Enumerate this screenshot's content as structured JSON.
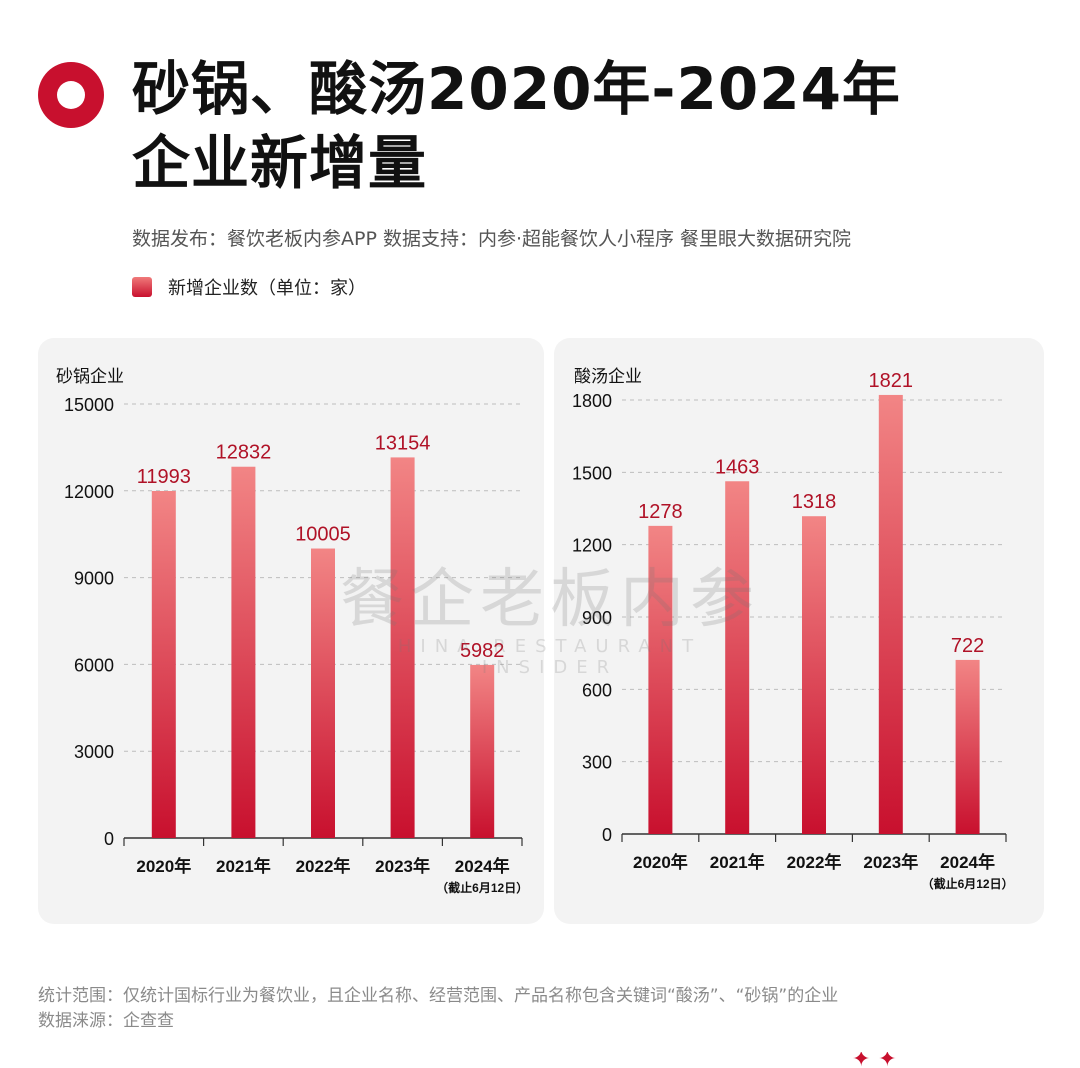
{
  "title": {
    "line1": "砂锅、酸汤2020年-2024年",
    "line2": "企业新增量"
  },
  "source_text": "数据发布：餐饮老板内参APP  数据支持：内参·超能餐饮人小程序   餐里眼大数据研究院",
  "legend": {
    "label": "新增企业数（单位：家）"
  },
  "colors": {
    "accent": "#c8102e",
    "bar_top": "#f28585",
    "bar_bottom": "#c8102e",
    "value_label": "#b01227"
  },
  "chart_data": [
    {
      "type": "bar",
      "title": "砂锅企业",
      "categories": [
        "2020年",
        "2021年",
        "2022年",
        "2023年",
        "2024年"
      ],
      "category_notes": [
        "",
        "",
        "",
        "",
        "（截止6月12日）"
      ],
      "values": [
        11993,
        12832,
        10005,
        13154,
        5982
      ],
      "value_labels": [
        "11993",
        "12832",
        "10005",
        "13154",
        "5982"
      ],
      "ylim": [
        0,
        15000
      ],
      "yticks": [
        0,
        3000,
        6000,
        9000,
        12000,
        15000
      ],
      "ytick_labels": [
        "0",
        "3000",
        "6000",
        "9000",
        "12000",
        "15000"
      ],
      "grid": true
    },
    {
      "type": "bar",
      "title": "酸汤企业",
      "categories": [
        "2020年",
        "2021年",
        "2022年",
        "2023年",
        "2024年"
      ],
      "category_notes": [
        "",
        "",
        "",
        "",
        "（截止6月12日）"
      ],
      "values": [
        1278,
        1463,
        1318,
        1821,
        722
      ],
      "value_labels": [
        "1278",
        "1463",
        "1318",
        "1821",
        "722"
      ],
      "ylim": [
        0,
        1800
      ],
      "yticks": [
        0,
        300,
        600,
        900,
        1200,
        1500,
        1800
      ],
      "ytick_labels": [
        "0",
        "300",
        "600",
        "900",
        "1200",
        "1500",
        "1800"
      ],
      "grid": true
    }
  ],
  "watermark": {
    "cn": "餐企老板内参",
    "en": "HINA RESTAURANT INSIDER"
  },
  "footnote": {
    "scope": "统计范围：仅统计国标行业为餐饮业，且企业名称、经营范围、产品名称包含关键词“酸汤”、“砂锅”的企业",
    "source": "数据涞源：企查查"
  }
}
